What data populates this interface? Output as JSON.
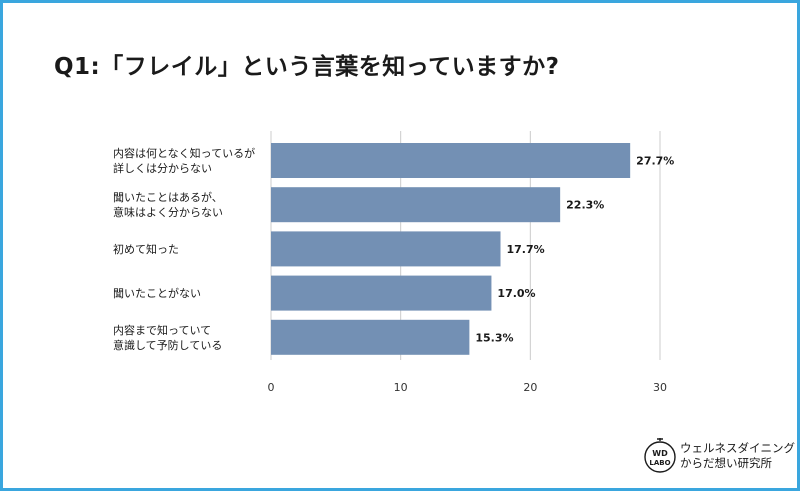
{
  "title": "Q1:「フレイル」という言葉を知っていますか?",
  "chart_data": {
    "type": "bar",
    "orientation": "horizontal",
    "categories": [
      [
        "内容は何となく知っているが",
        "詳しくは分からない"
      ],
      [
        "聞いたことはあるが、",
        "意味はよく分からない"
      ],
      [
        "初めて知った"
      ],
      [
        "聞いたことがない"
      ],
      [
        "内容まで知っていて",
        "意識して予防している"
      ]
    ],
    "values": [
      27.7,
      22.3,
      17.7,
      17.0,
      15.3
    ],
    "value_labels": [
      "27.7%",
      "22.3%",
      "17.7%",
      "17.0%",
      "15.3%"
    ],
    "xlim": [
      0,
      30
    ],
    "xticks": [
      0,
      10,
      20,
      30
    ],
    "xtick_labels": [
      "0",
      "10",
      "20",
      "30"
    ],
    "grid": true,
    "bar_color": "#7390b4",
    "grid_color": "#cccccc"
  },
  "logo": {
    "badge_lines": [
      "WD",
      "LABO"
    ],
    "name_line1": "ウェルネスダイニング",
    "name_line2": "からだ想い研究所"
  }
}
